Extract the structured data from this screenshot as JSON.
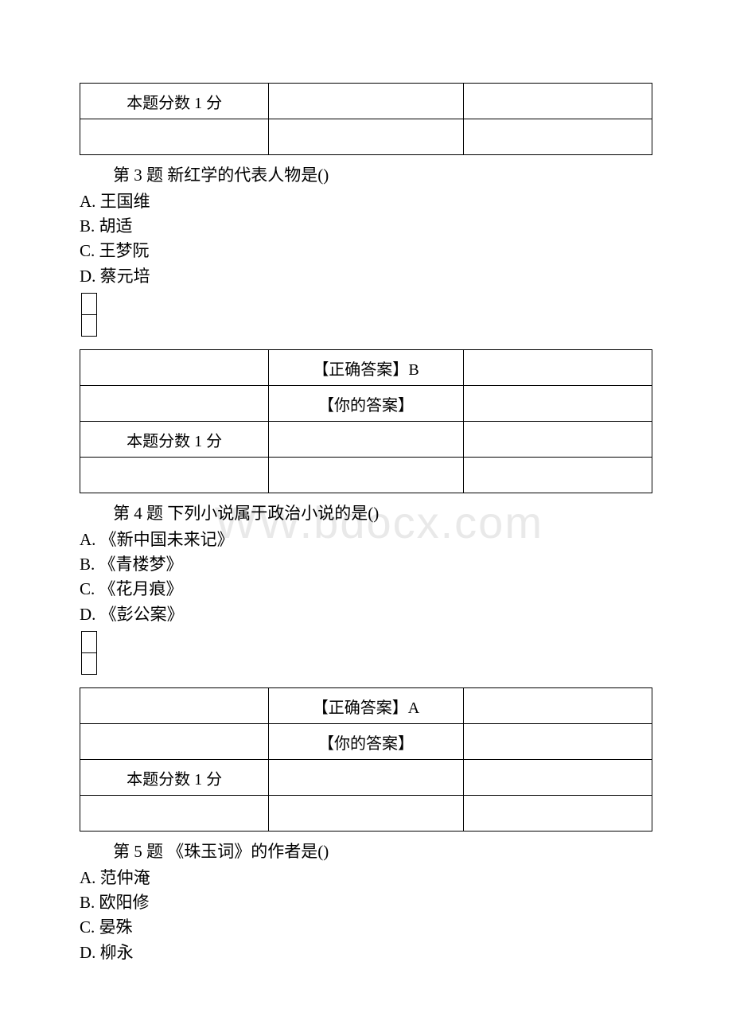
{
  "watermark_text": "WW.bdocx.com",
  "score_label": "本题分数 1 分",
  "correct_answer_prefix": "【正确答案】",
  "your_answer_label": "【你的答案】",
  "questions": [
    {
      "number": "第 3 题",
      "stem": "新红学的代表人物是()",
      "options": [
        {
          "letter": "A.",
          "text": "王国维"
        },
        {
          "letter": "B.",
          "text": "胡适"
        },
        {
          "letter": "C.",
          "text": "王梦阮"
        },
        {
          "letter": "D.",
          "text": "蔡元培"
        }
      ],
      "correct": "B"
    },
    {
      "number": "第 4 题",
      "stem": "下列小说属于政治小说的是()",
      "options": [
        {
          "letter": "A.",
          "text": "《新中国未来记》"
        },
        {
          "letter": "B.",
          "text": "《青楼梦》"
        },
        {
          "letter": "C.",
          "text": "《花月痕》"
        },
        {
          "letter": "D.",
          "text": "《彭公案》"
        }
      ],
      "correct": "A"
    },
    {
      "number": "第 5 题",
      "stem": "《珠玉词》的作者是()",
      "options": [
        {
          "letter": "A.",
          "text": "范仲淹"
        },
        {
          "letter": "B.",
          "text": "欧阳修"
        },
        {
          "letter": "C.",
          "text": "晏殊"
        },
        {
          "letter": "D.",
          "text": "柳永"
        }
      ],
      "correct": ""
    }
  ]
}
